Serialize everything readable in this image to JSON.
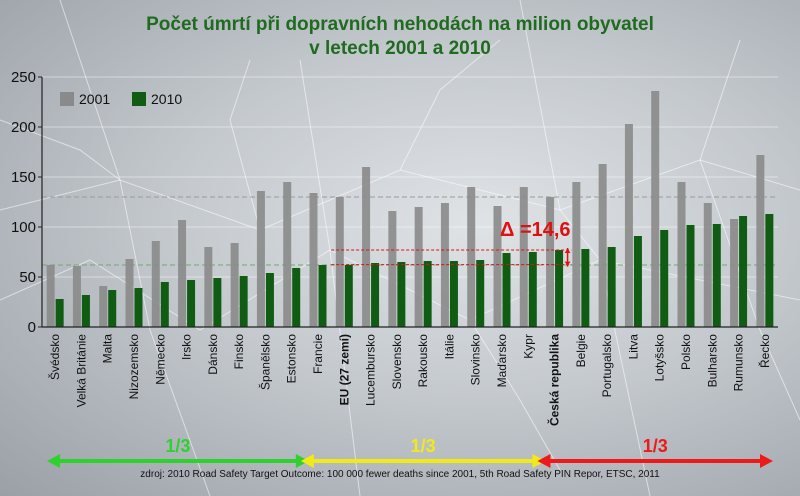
{
  "chart_data": {
    "type": "bar",
    "title_lines": [
      "Počet úmrtí při dopravních nehodách na milion obyvatel",
      "v letech 2001 a 2010"
    ],
    "categories": [
      "Švédsko",
      "Velká Británie",
      "Malta",
      "Nizozemsko",
      "Německo",
      "Irsko",
      "Dánsko",
      "Finsko",
      "Španělsko",
      "Estonsko",
      "Francie",
      "EU (27 zemí)",
      "Lucembursko",
      "Slovensko",
      "Rakousko",
      "Itálie",
      "Slovinsko",
      "Maďarsko",
      "Kypr",
      "Česká republika",
      "Belgie",
      "Portugalsko",
      "Litva",
      "Lotyšsko",
      "Polsko",
      "Bulharsko",
      "Rumunsko",
      "Řecko"
    ],
    "bold_categories": [
      "EU (27 zemí)",
      "Česká republika"
    ],
    "series": [
      {
        "name": "2001",
        "color": "#8a8a8a",
        "values": [
          62,
          61,
          41,
          68,
          86,
          107,
          80,
          84,
          136,
          145,
          134,
          130,
          160,
          116,
          120,
          124,
          140,
          121,
          140,
          130,
          145,
          163,
          203,
          236,
          145,
          124,
          108,
          172
        ]
      },
      {
        "name": "2010",
        "color": "#0f5c12",
        "values": [
          28,
          32,
          37,
          39,
          45,
          47,
          49,
          51,
          54,
          59,
          62,
          62,
          64,
          65,
          66,
          66,
          67,
          74,
          75,
          77,
          78,
          80,
          91,
          97,
          102,
          103,
          111,
          113
        ]
      }
    ],
    "ylim": [
      0,
      250
    ],
    "yticks": [
      0,
      50,
      100,
      150,
      200,
      250
    ],
    "grid": true,
    "legend": "top-left",
    "reference_lines": [
      {
        "value": 62,
        "color": "#6fa86f"
      },
      {
        "value": 130,
        "color": "#9a9a9a"
      }
    ],
    "annotation": {
      "text": "Δ =14,6",
      "color": "#e01010",
      "from_value": 62.4,
      "to_value": 77,
      "category": "Česká republika"
    },
    "groups": [
      {
        "label": "1/3",
        "color": "#2fd12f",
        "first": "Švédsko",
        "last": "Estonsko"
      },
      {
        "label": "1/3",
        "color": "#f2ea16",
        "first": "Francie",
        "last": "Kypr"
      },
      {
        "label": "1/3",
        "color": "#ee1a1a",
        "first": "Česká republika",
        "last": "Řecko"
      }
    ],
    "source": "zdroj: 2010 Road Safety Target Outcome: 100 000 fewer deaths since 2001, 5th Road Safety PIN Repor, ETSC, 2011"
  }
}
